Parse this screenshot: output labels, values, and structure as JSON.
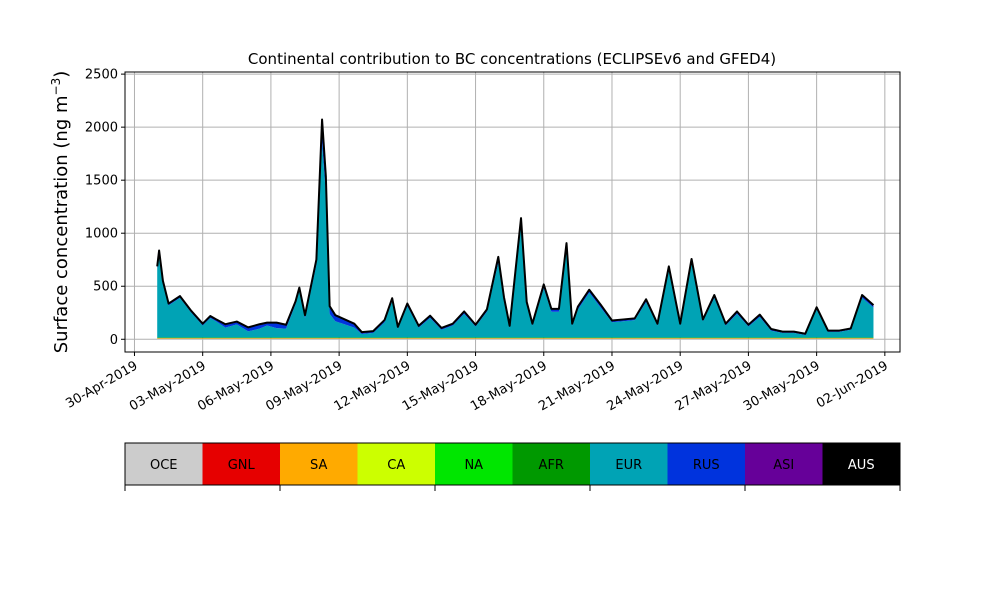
{
  "chart_data": {
    "type": "area",
    "title": "Continental contribution to BC concentrations (ECLIPSEv6 and GFED4)",
    "ylabel": "Surface concentration (ng m",
    "ylabel_sup": "−3",
    "ylabel_close": ")",
    "xlabel": "",
    "ylim": [
      -120,
      2520
    ],
    "xlim": [
      "2019-04-29T14:00",
      "2019-06-02T16:00"
    ],
    "grid": true,
    "yticks": [
      0,
      500,
      1000,
      1500,
      2000,
      2500
    ],
    "xticks": [
      "2019-04-30",
      "2019-05-03",
      "2019-05-06",
      "2019-05-09",
      "2019-05-12",
      "2019-05-15",
      "2019-05-18",
      "2019-05-21",
      "2019-05-24",
      "2019-05-27",
      "2019-05-30",
      "2019-06-02"
    ],
    "xtick_labels": [
      "30-Apr-2019",
      "03-May-2019",
      "06-May-2019",
      "09-May-2019",
      "12-May-2019",
      "15-May-2019",
      "18-May-2019",
      "21-May-2019",
      "24-May-2019",
      "27-May-2019",
      "30-May-2019",
      "02-Jun-2019"
    ],
    "x": [
      "2019-05-01T00:00",
      "2019-05-01T02:00",
      "2019-05-01T06:00",
      "2019-05-01T12:00",
      "2019-05-02T00:00",
      "2019-05-02T12:00",
      "2019-05-03T00:00",
      "2019-05-03T08:00",
      "2019-05-03T14:00",
      "2019-05-04T00:00",
      "2019-05-04T12:00",
      "2019-05-05T00:00",
      "2019-05-05T12:00",
      "2019-05-05T20:00",
      "2019-05-06T06:00",
      "2019-05-06T16:00",
      "2019-05-07T02:00",
      "2019-05-07T06:00",
      "2019-05-07T12:00",
      "2019-05-08T00:00",
      "2019-05-08T06:00",
      "2019-05-08T10:00",
      "2019-05-08T14:00",
      "2019-05-08T20:00",
      "2019-05-09T06:00",
      "2019-05-09T16:00",
      "2019-05-10T00:00",
      "2019-05-10T12:00",
      "2019-05-11T00:00",
      "2019-05-11T08:00",
      "2019-05-11T14:00",
      "2019-05-12T00:00",
      "2019-05-12T12:00",
      "2019-05-13T00:00",
      "2019-05-13T12:00",
      "2019-05-14T00:00",
      "2019-05-14T12:00",
      "2019-05-15T00:00",
      "2019-05-15T12:00",
      "2019-05-16T00:00",
      "2019-05-16T06:00",
      "2019-05-16T12:00",
      "2019-05-17T00:00",
      "2019-05-17T06:00",
      "2019-05-17T12:00",
      "2019-05-18T00:00",
      "2019-05-18T08:00",
      "2019-05-18T16:00",
      "2019-05-19T00:00",
      "2019-05-19T06:00",
      "2019-05-19T12:00",
      "2019-05-20T00:00",
      "2019-05-20T12:00",
      "2019-05-21T00:00",
      "2019-05-21T12:00",
      "2019-05-22T00:00",
      "2019-05-22T12:00",
      "2019-05-23T00:00",
      "2019-05-23T12:00",
      "2019-05-24T00:00",
      "2019-05-24T12:00",
      "2019-05-25T00:00",
      "2019-05-25T12:00",
      "2019-05-26T00:00",
      "2019-05-26T12:00",
      "2019-05-27T00:00",
      "2019-05-27T12:00",
      "2019-05-28T00:00",
      "2019-05-28T12:00",
      "2019-05-29T00:00",
      "2019-05-29T12:00",
      "2019-05-30T00:00",
      "2019-05-30T12:00",
      "2019-05-31T00:00",
      "2019-05-31T12:00",
      "2019-06-01T00:00",
      "2019-06-01T12:00"
    ],
    "series": [
      {
        "name": "OCE",
        "color": "#cccccc",
        "values": [
          5,
          5,
          5,
          5,
          5,
          5,
          5,
          5,
          5,
          5,
          5,
          5,
          5,
          5,
          5,
          5,
          5,
          5,
          5,
          5,
          5,
          5,
          5,
          5,
          5,
          5,
          5,
          5,
          5,
          5,
          5,
          5,
          5,
          5,
          5,
          5,
          5,
          5,
          5,
          5,
          5,
          5,
          5,
          5,
          5,
          5,
          5,
          5,
          5,
          5,
          5,
          5,
          5,
          5,
          5,
          5,
          5,
          5,
          5,
          5,
          5,
          5,
          5,
          5,
          5,
          5,
          5,
          5,
          5,
          5,
          5,
          5,
          5,
          5,
          5,
          5,
          5
        ]
      },
      {
        "name": "GNL",
        "color": "#e60000",
        "values": [
          2,
          2,
          2,
          2,
          2,
          2,
          2,
          2,
          2,
          2,
          2,
          2,
          2,
          2,
          2,
          2,
          2,
          2,
          2,
          2,
          2,
          2,
          2,
          2,
          2,
          2,
          2,
          2,
          2,
          2,
          2,
          2,
          2,
          2,
          2,
          2,
          2,
          2,
          2,
          2,
          2,
          2,
          2,
          2,
          2,
          2,
          2,
          2,
          2,
          2,
          2,
          2,
          2,
          2,
          2,
          2,
          2,
          2,
          2,
          2,
          2,
          2,
          2,
          2,
          2,
          2,
          2,
          2,
          2,
          2,
          2,
          2,
          2,
          2,
          2,
          2,
          2
        ]
      },
      {
        "name": "SA",
        "color": "#ffaa00",
        "values": [
          2,
          2,
          2,
          2,
          2,
          2,
          2,
          2,
          2,
          2,
          2,
          2,
          2,
          2,
          2,
          2,
          2,
          2,
          2,
          2,
          2,
          2,
          2,
          2,
          2,
          2,
          2,
          2,
          2,
          2,
          2,
          2,
          2,
          2,
          2,
          2,
          2,
          2,
          2,
          2,
          2,
          2,
          2,
          2,
          2,
          2,
          2,
          2,
          2,
          2,
          2,
          2,
          2,
          2,
          2,
          2,
          2,
          2,
          2,
          2,
          2,
          2,
          2,
          2,
          2,
          2,
          2,
          2,
          2,
          2,
          2,
          2,
          2,
          2,
          2,
          2,
          2
        ]
      },
      {
        "name": "CA",
        "color": "#ccff00",
        "values": [
          3,
          3,
          3,
          3,
          3,
          3,
          3,
          3,
          3,
          3,
          3,
          3,
          3,
          3,
          3,
          3,
          3,
          3,
          3,
          3,
          3,
          3,
          3,
          3,
          3,
          3,
          3,
          3,
          3,
          3,
          3,
          3,
          3,
          3,
          3,
          3,
          3,
          3,
          3,
          3,
          3,
          3,
          3,
          3,
          3,
          3,
          3,
          3,
          3,
          3,
          3,
          3,
          3,
          3,
          3,
          3,
          3,
          3,
          3,
          3,
          3,
          3,
          3,
          3,
          3,
          3,
          3,
          3,
          3,
          3,
          3,
          3,
          3,
          3,
          3,
          3,
          3
        ]
      },
      {
        "name": "NA",
        "color": "#00e600",
        "values": [
          2,
          2,
          2,
          2,
          2,
          2,
          2,
          2,
          2,
          2,
          2,
          2,
          2,
          2,
          2,
          2,
          2,
          2,
          2,
          2,
          2,
          2,
          2,
          2,
          2,
          2,
          2,
          2,
          2,
          2,
          2,
          2,
          2,
          2,
          2,
          2,
          2,
          2,
          2,
          2,
          2,
          2,
          2,
          2,
          2,
          2,
          2,
          2,
          2,
          2,
          2,
          2,
          2,
          2,
          2,
          2,
          2,
          2,
          2,
          2,
          2,
          2,
          2,
          2,
          2,
          2,
          2,
          2,
          2,
          2,
          2,
          2,
          2,
          2,
          2,
          2,
          2
        ]
      },
      {
        "name": "AFR",
        "color": "#009900",
        "values": [
          3,
          3,
          3,
          3,
          3,
          3,
          3,
          3,
          3,
          3,
          3,
          3,
          3,
          3,
          3,
          3,
          3,
          3,
          3,
          3,
          3,
          3,
          3,
          3,
          3,
          3,
          3,
          3,
          3,
          3,
          3,
          3,
          3,
          3,
          3,
          3,
          3,
          3,
          3,
          3,
          3,
          3,
          3,
          3,
          3,
          3,
          3,
          3,
          3,
          3,
          3,
          3,
          3,
          3,
          3,
          3,
          3,
          3,
          3,
          3,
          3,
          3,
          3,
          3,
          3,
          3,
          3,
          3,
          3,
          3,
          3,
          3,
          3,
          3,
          3,
          3,
          3
        ]
      },
      {
        "name": "EUR",
        "color": "#00a3b5",
        "values": [
          643,
          793,
          513,
          303,
          373,
          233,
          113,
          183,
          153,
          93,
          123,
          58,
          83,
          113,
          88,
          83,
          313,
          443,
          183,
          683,
          1833,
          1353,
          223,
          153,
          123,
          93,
          33,
          43,
          143,
          343,
          83,
          293,
          93,
          183,
          73,
          113,
          223,
          103,
          243,
          703,
          343,
          93,
          1053,
          303,
          113,
          463,
          243,
          243,
          843,
          113,
          263,
          423,
          283,
          143,
          153,
          163,
          333,
          113,
          633,
          113,
          703,
          153,
          373,
          113,
          223,
          103,
          193,
          63,
          43,
          43,
          23,
          263,
          53,
          53,
          73,
          373,
          283
        ]
      },
      {
        "name": "RUS",
        "color": "#0033dd",
        "values": [
          20,
          20,
          15,
          10,
          10,
          10,
          10,
          12,
          12,
          25,
          20,
          30,
          35,
          20,
          45,
          30,
          20,
          20,
          20,
          40,
          200,
          150,
          60,
          50,
          40,
          30,
          10,
          10,
          15,
          20,
          10,
          20,
          10,
          15,
          10,
          10,
          15,
          10,
          15,
          50,
          30,
          10,
          60,
          25,
          10,
          30,
          20,
          20,
          40,
          10,
          20,
          20,
          20,
          10,
          10,
          10,
          20,
          10,
          30,
          10,
          30,
          10,
          20,
          10,
          15,
          10,
          15,
          10,
          5,
          5,
          5,
          15,
          5,
          5,
          5,
          20,
          15
        ]
      },
      {
        "name": "ASI",
        "color": "#660099",
        "values": [
          5,
          5,
          5,
          5,
          5,
          5,
          5,
          5,
          5,
          5,
          5,
          5,
          5,
          5,
          5,
          5,
          5,
          5,
          5,
          10,
          20,
          15,
          10,
          5,
          5,
          5,
          5,
          5,
          5,
          5,
          5,
          5,
          5,
          5,
          5,
          5,
          5,
          5,
          5,
          5,
          5,
          5,
          10,
          5,
          5,
          5,
          5,
          5,
          5,
          5,
          5,
          5,
          5,
          5,
          5,
          5,
          5,
          5,
          5,
          5,
          5,
          5,
          5,
          5,
          5,
          5,
          5,
          5,
          5,
          5,
          5,
          5,
          5,
          5,
          5,
          5,
          5
        ]
      },
      {
        "name": "AUS",
        "color": "#000000",
        "values": [
          2,
          2,
          2,
          2,
          2,
          2,
          2,
          2,
          2,
          2,
          2,
          2,
          2,
          2,
          2,
          2,
          2,
          2,
          2,
          2,
          2,
          2,
          2,
          2,
          2,
          2,
          2,
          2,
          2,
          2,
          2,
          2,
          2,
          2,
          2,
          2,
          2,
          2,
          2,
          2,
          2,
          2,
          2,
          2,
          2,
          2,
          2,
          2,
          2,
          2,
          2,
          2,
          2,
          2,
          2,
          2,
          2,
          2,
          2,
          2,
          2,
          2,
          2,
          2,
          2,
          2,
          2,
          2,
          2,
          2,
          2,
          2,
          2,
          2,
          2,
          2,
          2
        ]
      }
    ],
    "legend_placement": "bottom"
  },
  "legend_text_colors": {
    "OCE": "#000000",
    "GNL": "#000000",
    "SA": "#000000",
    "CA": "#000000",
    "NA": "#000000",
    "AFR": "#000000",
    "EUR": "#000000",
    "RUS": "#000000",
    "ASI": "#000000",
    "AUS": "#ffffff"
  }
}
